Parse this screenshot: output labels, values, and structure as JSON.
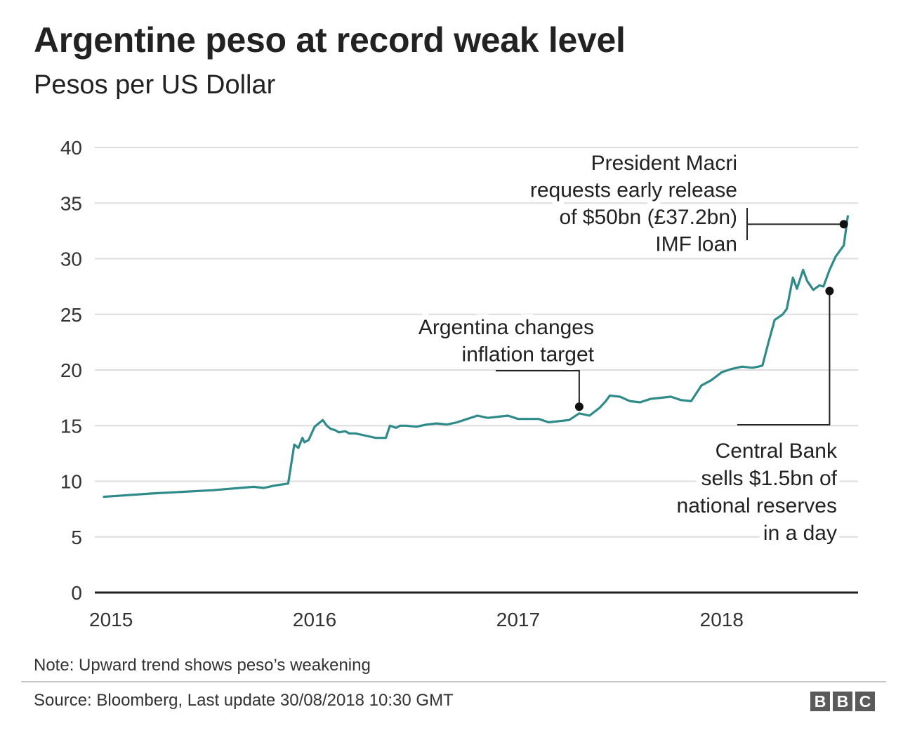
{
  "header": {
    "title": "Argentine peso at record weak level",
    "subtitle": "Pesos per US Dollar"
  },
  "footer": {
    "note": "Note: Upward trend shows peso’s weakening",
    "source": "Source: Bloomberg, Last update 30/08/2018 10:30 GMT",
    "logo_letters": [
      "B",
      "B",
      "C"
    ]
  },
  "colors": {
    "line": "#2e8b89",
    "grid": "#dddddd",
    "axis": "#222222",
    "text": "#222222",
    "logo": "#5a5a5a"
  },
  "chart_data": {
    "type": "line",
    "title": "Argentine peso at record weak level",
    "subtitle": "Pesos per US Dollar",
    "xlabel": "",
    "ylabel": "",
    "ylim": [
      0,
      40
    ],
    "xlim": [
      2014.92,
      2018.67
    ],
    "yticks": [
      0,
      5,
      10,
      15,
      20,
      25,
      30,
      35,
      40
    ],
    "xticks": [
      {
        "value": 2015,
        "label": "2015"
      },
      {
        "value": 2016,
        "label": "2016"
      },
      {
        "value": 2017,
        "label": "2017"
      },
      {
        "value": 2018,
        "label": "2018"
      }
    ],
    "grid": true,
    "series": [
      {
        "x": [
          2014.96,
          2015.2,
          2015.5,
          2015.7,
          2015.75,
          2015.8,
          2015.87,
          2015.9,
          2015.92,
          2015.94,
          2015.95,
          2015.97,
          2016.0,
          2016.04,
          2016.06,
          2016.08,
          2016.1,
          2016.12,
          2016.15,
          2016.17,
          2016.2,
          2016.25,
          2016.3,
          2016.35,
          2016.37,
          2016.4,
          2016.42,
          2016.45,
          2016.5,
          2016.55,
          2016.6,
          2016.65,
          2016.7,
          2016.75,
          2016.8,
          2016.85,
          2016.9,
          2016.95,
          2017.0,
          2017.05,
          2017.1,
          2017.15,
          2017.2,
          2017.25,
          2017.3,
          2017.35,
          2017.4,
          2017.43,
          2017.45,
          2017.5,
          2017.55,
          2017.6,
          2017.65,
          2017.7,
          2017.75,
          2017.8,
          2017.85,
          2017.9,
          2017.95,
          2018.0,
          2018.05,
          2018.1,
          2018.15,
          2018.18,
          2018.2,
          2018.23,
          2018.26,
          2018.3,
          2018.32,
          2018.35,
          2018.37,
          2018.4,
          2018.42,
          2018.45,
          2018.48,
          2018.5,
          2018.53,
          2018.56,
          2018.6,
          2018.62
        ],
        "values": [
          8.6,
          8.9,
          9.2,
          9.5,
          9.4,
          9.6,
          9.8,
          13.3,
          13.0,
          13.9,
          13.5,
          13.7,
          14.9,
          15.5,
          15.0,
          14.7,
          14.6,
          14.4,
          14.5,
          14.3,
          14.3,
          14.1,
          13.9,
          13.9,
          15.0,
          14.8,
          15.0,
          15.0,
          14.9,
          15.1,
          15.2,
          15.1,
          15.3,
          15.6,
          15.9,
          15.7,
          15.8,
          15.9,
          15.6,
          15.6,
          15.6,
          15.3,
          15.4,
          15.5,
          16.1,
          15.9,
          16.6,
          17.2,
          17.7,
          17.6,
          17.2,
          17.1,
          17.4,
          17.5,
          17.6,
          17.3,
          17.2,
          18.6,
          19.1,
          19.8,
          20.1,
          20.3,
          20.2,
          20.3,
          20.4,
          22.5,
          24.5,
          25.0,
          25.5,
          28.3,
          27.3,
          29.0,
          28.0,
          27.2,
          27.6,
          27.5,
          29.0,
          30.2,
          31.2,
          33.9
        ]
      }
    ],
    "annotations": [
      {
        "text_lines": [
          "President Macri",
          "requests early release",
          "of $50bn (£37.2bn)",
          "IMF loan"
        ],
        "x": 2018.6,
        "y": 33.1
      },
      {
        "text_lines": [
          "Argentina changes",
          "inflation target"
        ],
        "x": 2017.3,
        "y": 16.7
      },
      {
        "text_lines": [
          "Central Bank",
          "sells $1.5bn of",
          "national reserves",
          "in a day"
        ],
        "x": 2018.53,
        "y": 27.1
      }
    ]
  }
}
